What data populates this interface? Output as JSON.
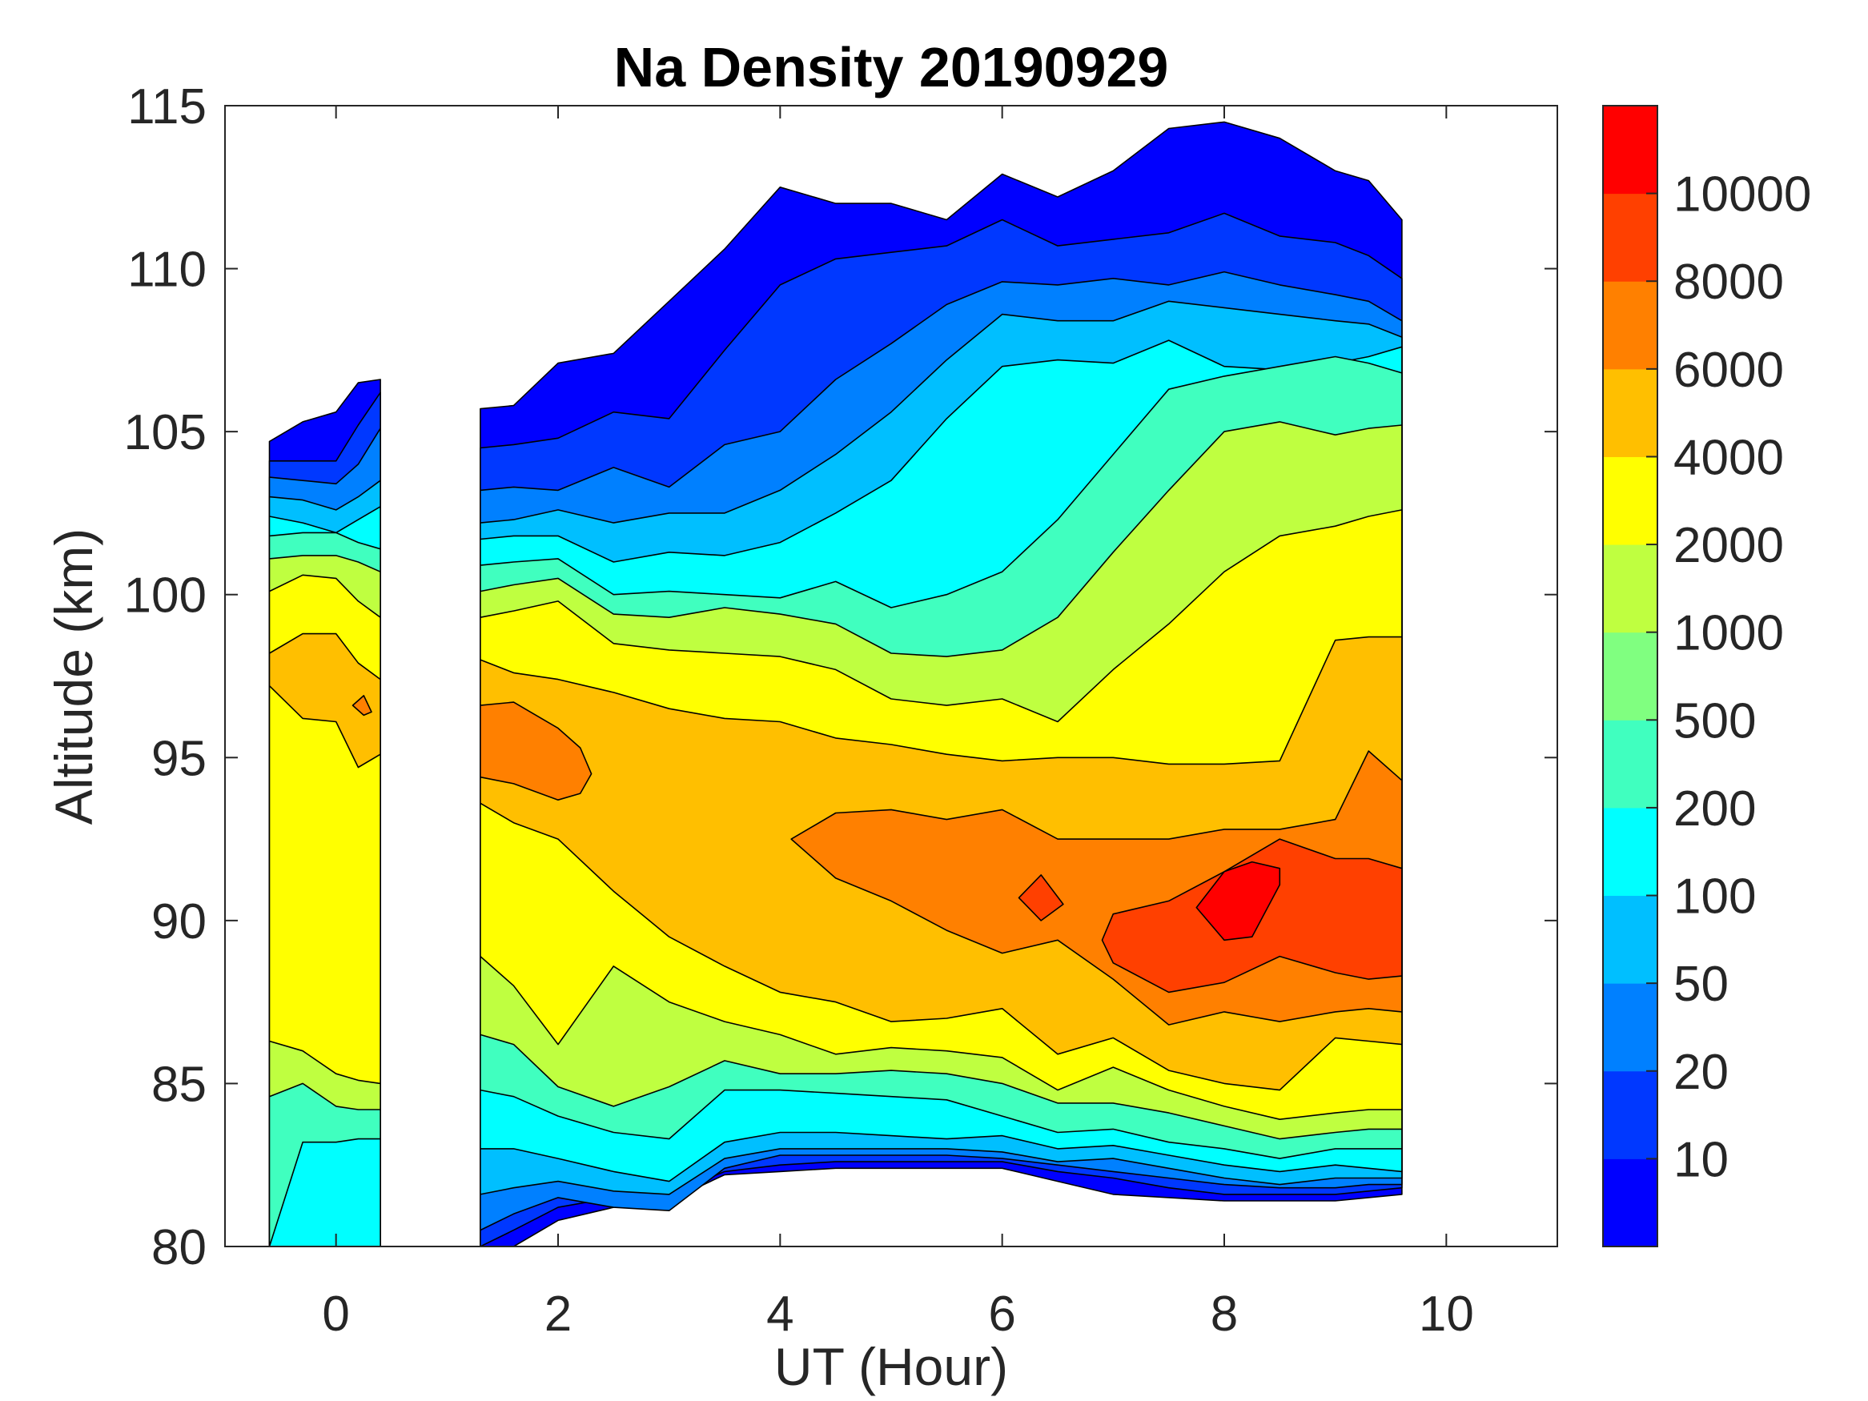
{
  "chart_data": {
    "type": "contourf",
    "title": "Na Density 20190929",
    "xlabel": "UT (Hour)",
    "ylabel": "Altitude (km)",
    "xlim": [
      -1,
      11
    ],
    "ylim": [
      80,
      115
    ],
    "xticks": [
      0,
      2,
      4,
      6,
      8,
      10
    ],
    "yticks": [
      80,
      85,
      90,
      95,
      100,
      105,
      110,
      115
    ],
    "grid": false,
    "colorbar": {
      "position": "right",
      "tick_labels": [
        "10",
        "20",
        "50",
        "100",
        "200",
        "500",
        "1000",
        "2000",
        "4000",
        "6000",
        "8000",
        "10000"
      ],
      "colors": [
        "#0000FF",
        "#0038FF",
        "#0080FF",
        "#00BFFF",
        "#00FFFF",
        "#40FFBF",
        "#80FF80",
        "#BFFF40",
        "#FFFF00",
        "#FFBF00",
        "#FF8000",
        "#FF4000",
        "#FF0000"
      ]
    },
    "regions": [
      {
        "color_index": 0,
        "t": [
          -0.6,
          -0.3,
          0,
          0.2,
          0.4
        ],
        "upper": [
          104.7,
          105.3,
          105.6,
          106.5,
          106.6
        ],
        "lower": [
          80,
          80,
          80,
          80,
          80
        ]
      },
      {
        "color_index": 0,
        "t": [
          1.3,
          1.6,
          2.0,
          2.5,
          3.0,
          3.5,
          4.0,
          4.5,
          5.0,
          5.5,
          6.0,
          6.5,
          7.0,
          7.5,
          8.0,
          8.5,
          9.0,
          9.3,
          9.6
        ],
        "upper": [
          105.7,
          105.8,
          107.1,
          107.4,
          109,
          110.6,
          112.5,
          112,
          112,
          111.5,
          112.9,
          112.2,
          113,
          114.3,
          114.5,
          114,
          113,
          112.7,
          111.5
        ],
        "lower": [
          80,
          80,
          80.8,
          81.2,
          81.4,
          82.2,
          82.3,
          82.4,
          82.4,
          82.4,
          82.4,
          82.0,
          81.6,
          81.5,
          81.4,
          81.4,
          81.4,
          81.5,
          81.6
        ]
      },
      {
        "color_index": 1,
        "t": [
          -0.6,
          -0.3,
          0,
          0.2,
          0.4
        ],
        "upper": [
          104.1,
          104.1,
          104.1,
          105.2,
          106.2
        ],
        "lower": [
          80,
          80,
          80,
          80,
          80
        ]
      },
      {
        "color_index": 1,
        "t": [
          1.3,
          1.6,
          2.0,
          2.5,
          3.0,
          3.5,
          4.0,
          4.5,
          5.0,
          5.5,
          6.0,
          6.5,
          7.0,
          7.5,
          8.0,
          8.5,
          9.0,
          9.3,
          9.6
        ],
        "upper": [
          104.5,
          104.6,
          104.8,
          105.6,
          105.4,
          107.5,
          109.5,
          110.3,
          110.5,
          110.7,
          111.5,
          110.7,
          110.9,
          111.1,
          111.7,
          111,
          110.8,
          110.4,
          109.7
        ],
        "lower": [
          80,
          80.5,
          81.2,
          81.5,
          81.6,
          82.3,
          82.5,
          82.6,
          82.6,
          82.6,
          82.6,
          82.3,
          82.1,
          81.8,
          81.6,
          81.6,
          81.6,
          81.7,
          81.8
        ]
      },
      {
        "color_index": 2,
        "t": [
          -0.6,
          -0.3,
          0,
          0.2,
          0.4
        ],
        "upper": [
          103.6,
          103.5,
          103.4,
          104,
          105.1
        ],
        "lower": [
          80,
          80,
          80,
          80,
          80
        ]
      },
      {
        "color_index": 2,
        "t": [
          1.3,
          1.6,
          2.0,
          2.5,
          3.0,
          3.5,
          4.0,
          4.5,
          5.0,
          5.5,
          6.0,
          6.5,
          7.0,
          7.5,
          8.0,
          8.5,
          9.0,
          9.3,
          9.6
        ],
        "upper": [
          103.2,
          103.3,
          103.2,
          103.9,
          103.3,
          104.6,
          105,
          106.6,
          107.7,
          108.9,
          109.6,
          109.5,
          109.7,
          109.5,
          109.9,
          109.5,
          109.2,
          109,
          108.4
        ],
        "lower": [
          80.5,
          81,
          81.5,
          81.2,
          81.1,
          82.4,
          82.8,
          82.8,
          82.8,
          82.8,
          82.7,
          82.5,
          82.3,
          82.1,
          81.9,
          81.8,
          81.8,
          81.9,
          81.9
        ]
      },
      {
        "color_index": 3,
        "t": [
          -0.6,
          -0.3,
          0,
          0.2,
          0.4
        ],
        "upper": [
          103.0,
          102.9,
          102.6,
          103,
          103.5
        ],
        "lower": [
          80,
          80,
          80,
          80,
          80
        ]
      },
      {
        "color_index": 3,
        "t": [
          1.3,
          1.6,
          2.0,
          2.5,
          3.0,
          3.5,
          4.0,
          4.5,
          5.0,
          5.5,
          6.0,
          6.5,
          7.0,
          7.5,
          8.0,
          8.5,
          9.0,
          9.3,
          9.6
        ],
        "upper": [
          102.2,
          102.3,
          102.6,
          102.2,
          102.5,
          102.5,
          103.2,
          104.3,
          105.6,
          107.2,
          108.6,
          108.4,
          108.4,
          109,
          108.8,
          108.6,
          108.4,
          108.3,
          107.9
        ],
        "lower": [
          81.6,
          81.8,
          82,
          81.7,
          81.6,
          82.7,
          83,
          83,
          83,
          83,
          82.9,
          82.6,
          82.7,
          82.4,
          82.1,
          81.9,
          82.1,
          82.1,
          82.1
        ]
      },
      {
        "color_index": 4,
        "t": [
          -0.6,
          -0.3,
          0,
          0.2,
          0.4
        ],
        "upper": [
          102.4,
          102.2,
          101.9,
          102.3,
          102.7
        ],
        "lower": [
          80,
          80,
          80,
          80,
          80
        ]
      },
      {
        "color_index": 4,
        "t": [
          1.3,
          1.6,
          2.0,
          2.5,
          3.0,
          3.5,
          4.0,
          4.5,
          5.0,
          5.5,
          6.0,
          6.5,
          7.0,
          7.5,
          8.0,
          8.5,
          9.0,
          9.3,
          9.6
        ],
        "upper": [
          101.7,
          101.8,
          101.8,
          101,
          101.3,
          101.2,
          101.6,
          102.5,
          103.5,
          105.4,
          107,
          107.2,
          107.1,
          107.8,
          107,
          106.9,
          107.1,
          107.3,
          107.6
        ],
        "lower": [
          83,
          83,
          82.7,
          82.3,
          82,
          83.2,
          83.5,
          83.5,
          83.4,
          83.3,
          83.4,
          83,
          83.1,
          82.8,
          82.5,
          82.3,
          82.5,
          82.4,
          82.3
        ]
      },
      {
        "color_index": 5,
        "t": [
          -0.6,
          -0.3,
          0,
          0.2,
          0.4
        ],
        "upper": [
          101.8,
          101.9,
          101.9,
          101.6,
          101.4
        ],
        "lower": [
          80,
          83.2,
          83.2,
          83.3,
          83.3
        ]
      },
      {
        "color_index": 5,
        "t": [
          1.3,
          1.6,
          2.0,
          2.5,
          3.0,
          3.5,
          4.0,
          4.5,
          5.0,
          5.5,
          6.0,
          6.5,
          7.0,
          7.5,
          8.0,
          8.5,
          9.0,
          9.3,
          9.6
        ],
        "upper": [
          100.9,
          101,
          101.1,
          100,
          100.1,
          100,
          99.9,
          100.4,
          99.6,
          100,
          100.7,
          102.3,
          104.3,
          106.3,
          106.7,
          107,
          107.3,
          107.1,
          106.8
        ],
        "lower": [
          84.8,
          84.6,
          84,
          83.5,
          83.3,
          84.8,
          84.8,
          84.7,
          84.6,
          84.5,
          84,
          83.5,
          83.6,
          83.2,
          83,
          82.7,
          83,
          83,
          83
        ]
      },
      {
        "color_index": 7,
        "t": [
          -0.6,
          -0.3,
          0,
          0.2,
          0.4
        ],
        "upper": [
          101.1,
          101.2,
          101.2,
          101,
          100.7
        ],
        "lower": [
          84.6,
          85.0,
          84.3,
          84.2,
          84.2
        ]
      },
      {
        "color_index": 7,
        "t": [
          1.3,
          1.6,
          2.0,
          2.5,
          3.0,
          3.5,
          4.0,
          4.5,
          5.0,
          5.5,
          6.0,
          6.5,
          7.0,
          7.5,
          8.0,
          8.5,
          9.0,
          9.3,
          9.6
        ],
        "upper": [
          100.1,
          100.3,
          100.5,
          99.4,
          99.3,
          99.6,
          99.4,
          99.1,
          98.2,
          98.1,
          98.3,
          99.3,
          101.3,
          103.2,
          105,
          105.3,
          104.9,
          105.1,
          105.2
        ],
        "lower": [
          86.5,
          86.2,
          84.9,
          84.3,
          84.9,
          85.7,
          85.3,
          85.3,
          85.4,
          85.3,
          85,
          84.4,
          84.4,
          84.1,
          83.7,
          83.3,
          83.5,
          83.6,
          83.6
        ]
      },
      {
        "color_index": 8,
        "t": [
          -0.6,
          -0.3,
          0,
          0.2,
          0.4
        ],
        "upper": [
          100.1,
          100.6,
          100.5,
          99.8,
          99.3
        ],
        "lower": [
          86.3,
          86.0,
          85.3,
          85.1,
          85.0
        ]
      },
      {
        "color_index": 8,
        "t": [
          1.3,
          1.6,
          2.0,
          2.5,
          3.0,
          3.5,
          4.0,
          4.5,
          5.0,
          5.5,
          6.0,
          6.5,
          7.0,
          7.5,
          8.0,
          8.5,
          9.0,
          9.3,
          9.6
        ],
        "upper": [
          99.3,
          99.5,
          99.8,
          98.5,
          98.3,
          98.2,
          98.1,
          97.7,
          96.8,
          96.6,
          96.8,
          96.1,
          97.7,
          99.1,
          100.7,
          101.8,
          102.1,
          102.4,
          102.6
        ],
        "lower": [
          88.9,
          88,
          86.2,
          88.6,
          87.5,
          86.9,
          86.5,
          85.9,
          86.1,
          86,
          85.8,
          84.8,
          85.5,
          84.8,
          84.3,
          83.9,
          84.1,
          84.2,
          84.2
        ]
      },
      {
        "color_index": 9,
        "t": [
          -0.6,
          -0.3,
          0,
          0.2,
          0.4
        ],
        "upper": [
          98.2,
          98.8,
          98.8,
          97.9,
          97.4
        ],
        "lower": [
          97.2,
          96.2,
          96.1,
          94.7,
          95.1
        ]
      },
      {
        "color_index": 9,
        "t": [
          1.3,
          1.6,
          2.0,
          2.5,
          3.0,
          3.5,
          4.0,
          4.5,
          5.0,
          5.5,
          6.0,
          6.5,
          7.0,
          7.5,
          8.0,
          8.5,
          9.0,
          9.3,
          9.6
        ],
        "upper": [
          98,
          97.6,
          97.4,
          97,
          96.5,
          96.2,
          96.1,
          95.6,
          95.4,
          95.1,
          94.9,
          95,
          95,
          94.8,
          94.8,
          94.9,
          98.6,
          98.7,
          98.7
        ],
        "lower": [
          93.6,
          93,
          92.5,
          90.9,
          89.5,
          88.6,
          87.8,
          87.5,
          86.9,
          87,
          87.3,
          85.9,
          86.4,
          85.4,
          85,
          84.8,
          86.4,
          86.3,
          86.2
        ]
      },
      {
        "color_index": 10,
        "t": [
          0.15,
          0.25,
          0.32
        ],
        "upper": [
          96.6,
          96.9,
          96.4
        ],
        "lower": [
          96.6,
          96.3,
          96.4
        ]
      },
      {
        "color_index": 10,
        "t": [
          1.3,
          1.6,
          2.0,
          2.2,
          2.3
        ],
        "upper": [
          96.6,
          96.7,
          95.9,
          95.3,
          94.5
        ],
        "lower": [
          94.4,
          94.2,
          93.7,
          93.9,
          94.5
        ]
      },
      {
        "color_index": 10,
        "t": [
          4.1,
          4.5,
          5.0,
          5.5,
          6.0,
          6.5,
          7.0,
          7.5,
          8.0,
          8.5,
          9.0,
          9.3,
          9.6
        ],
        "upper": [
          92.5,
          93.3,
          93.4,
          93.1,
          93.4,
          92.5,
          92.5,
          92.5,
          92.8,
          92.8,
          93.1,
          95.2,
          94.3
        ],
        "lower": [
          92.5,
          91.3,
          90.6,
          89.7,
          89,
          89.4,
          88.2,
          86.8,
          87.2,
          86.9,
          87.2,
          87.3,
          87.2
        ]
      },
      {
        "color_index": 11,
        "t": [
          6.15,
          6.35,
          6.55
        ],
        "upper": [
          90.7,
          91.4,
          90.5
        ],
        "lower": [
          90.7,
          90.0,
          90.5
        ]
      },
      {
        "color_index": 11,
        "t": [
          6.9,
          7.0,
          7.5,
          8.0,
          8.5,
          9.0,
          9.3,
          9.6
        ],
        "upper": [
          89.4,
          90.2,
          90.6,
          91.5,
          92.5,
          91.9,
          91.9,
          91.6
        ],
        "lower": [
          89.4,
          88.7,
          87.8,
          88.1,
          88.9,
          88.4,
          88.2,
          88.3
        ]
      },
      {
        "color_index": 12,
        "t": [
          7.75,
          8.0,
          8.25,
          8.5
        ],
        "upper": [
          90.4,
          91.5,
          91.8,
          91.6
        ],
        "lower": [
          90.4,
          89.4,
          89.5,
          91.1
        ]
      }
    ]
  }
}
